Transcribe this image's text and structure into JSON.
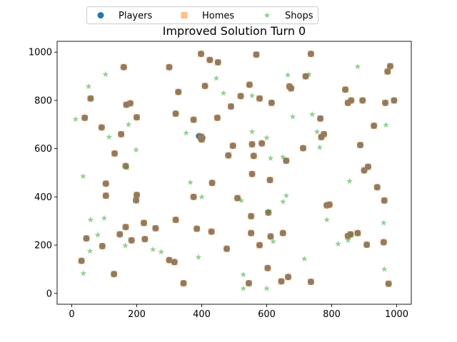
{
  "chart_data": {
    "type": "scatter",
    "title": "Improved Solution Turn 0",
    "xlabel": "",
    "ylabel": "",
    "xlim": [
      -45,
      1045
    ],
    "ylim": [
      -45,
      1045
    ],
    "xticks": [
      0,
      200,
      400,
      600,
      800,
      1000
    ],
    "yticks": [
      0,
      200,
      400,
      600,
      800,
      1000
    ],
    "grid": false,
    "legend_position": "top-center",
    "series": [
      {
        "name": "Players",
        "marker": "circle",
        "color": "#1f77b4"
      },
      {
        "name": "Homes",
        "marker": "square",
        "color": "#ff7f0e"
      },
      {
        "name": "Shops",
        "marker": "star",
        "color": "#2ca02c"
      }
    ],
    "houses": [
      [
        300,
        938
      ],
      [
        398,
        993
      ],
      [
        425,
        968
      ],
      [
        450,
        958
      ],
      [
        568,
        990
      ],
      [
        736,
        993
      ],
      [
        160,
        938
      ],
      [
        972,
        920
      ],
      [
        980,
        942
      ],
      [
        58,
        808
      ],
      [
        180,
        788
      ],
      [
        168,
        782
      ],
      [
        328,
        835
      ],
      [
        410,
        860
      ],
      [
        547,
        865
      ],
      [
        520,
        818
      ],
      [
        578,
        808
      ],
      [
        615,
        790
      ],
      [
        670,
        858
      ],
      [
        675,
        850
      ],
      [
        720,
        900
      ],
      [
        842,
        845
      ],
      [
        895,
        800
      ],
      [
        850,
        790
      ],
      [
        860,
        800
      ],
      [
        965,
        790
      ],
      [
        992,
        800
      ],
      [
        40,
        728
      ],
      [
        200,
        730
      ],
      [
        320,
        745
      ],
      [
        375,
        720
      ],
      [
        448,
        728
      ],
      [
        490,
        775
      ],
      [
        765,
        725
      ],
      [
        776,
        660
      ],
      [
        768,
        648
      ],
      [
        712,
        602
      ],
      [
        585,
        622
      ],
      [
        660,
        550
      ],
      [
        930,
        695
      ],
      [
        888,
        615
      ],
      [
        92,
        688
      ],
      [
        152,
        660
      ],
      [
        132,
        580
      ],
      [
        166,
        528
      ],
      [
        496,
        612
      ],
      [
        482,
        572
      ],
      [
        555,
        618
      ],
      [
        560,
        570
      ],
      [
        610,
        470
      ],
      [
        555,
        495
      ],
      [
        900,
        510
      ],
      [
        912,
        525
      ],
      [
        432,
        458
      ],
      [
        375,
        400
      ],
      [
        510,
        395
      ],
      [
        105,
        455
      ],
      [
        105,
        405
      ],
      [
        200,
        408
      ],
      [
        198,
        386
      ],
      [
        940,
        440
      ],
      [
        962,
        385
      ],
      [
        785,
        365
      ],
      [
        793,
        368
      ],
      [
        166,
        275
      ],
      [
        222,
        292
      ],
      [
        258,
        270
      ],
      [
        320,
        305
      ],
      [
        385,
        268
      ],
      [
        430,
        256
      ],
      [
        477,
        185
      ],
      [
        552,
        250
      ],
      [
        552,
        320
      ],
      [
        578,
        200
      ],
      [
        605,
        335
      ],
      [
        612,
        236
      ],
      [
        650,
        250
      ],
      [
        880,
        250
      ],
      [
        850,
        238
      ],
      [
        858,
        245
      ],
      [
        908,
        202
      ],
      [
        960,
        212
      ],
      [
        148,
        245
      ],
      [
        184,
        220
      ],
      [
        225,
        225
      ],
      [
        45,
        228
      ],
      [
        94,
        196
      ],
      [
        30,
        135
      ],
      [
        130,
        80
      ],
      [
        300,
        138
      ],
      [
        316,
        130
      ],
      [
        344,
        42
      ],
      [
        545,
        42
      ],
      [
        603,
        105
      ],
      [
        645,
        50
      ],
      [
        666,
        68
      ],
      [
        736,
        48
      ],
      [
        975,
        40
      ],
      [
        398,
        650
      ],
      [
        400,
        638
      ]
    ],
    "players": [
      [
        392,
        652
      ],
      [
        398,
        640
      ],
      [
        402,
        645
      ]
    ],
    "shops": [
      [
        12,
        722
      ],
      [
        52,
        858
      ],
      [
        104,
        908
      ],
      [
        115,
        648
      ],
      [
        175,
        700
      ],
      [
        198,
        595
      ],
      [
        170,
        520
      ],
      [
        35,
        485
      ],
      [
        352,
        665
      ],
      [
        365,
        460
      ],
      [
        400,
        400
      ],
      [
        445,
        892
      ],
      [
        467,
        830
      ],
      [
        555,
        820
      ],
      [
        555,
        670
      ],
      [
        600,
        645
      ],
      [
        612,
        560
      ],
      [
        650,
        565
      ],
      [
        660,
        405
      ],
      [
        650,
        380
      ],
      [
        620,
        215
      ],
      [
        605,
        340
      ],
      [
        522,
        385
      ],
      [
        665,
        905
      ],
      [
        680,
        732
      ],
      [
        730,
        908
      ],
      [
        740,
        742
      ],
      [
        755,
        670
      ],
      [
        763,
        605
      ],
      [
        785,
        305
      ],
      [
        820,
        205
      ],
      [
        855,
        465
      ],
      [
        880,
        940
      ],
      [
        967,
        698
      ],
      [
        960,
        292
      ],
      [
        962,
        100
      ],
      [
        860,
        242
      ],
      [
        850,
        220
      ],
      [
        716,
        143
      ],
      [
        390,
        150
      ],
      [
        528,
        78
      ],
      [
        528,
        20
      ],
      [
        600,
        20
      ],
      [
        275,
        172
      ],
      [
        250,
        182
      ],
      [
        165,
        198
      ],
      [
        100,
        312
      ],
      [
        58,
        305
      ],
      [
        80,
        242
      ],
      [
        56,
        175
      ],
      [
        36,
        83
      ]
    ]
  }
}
